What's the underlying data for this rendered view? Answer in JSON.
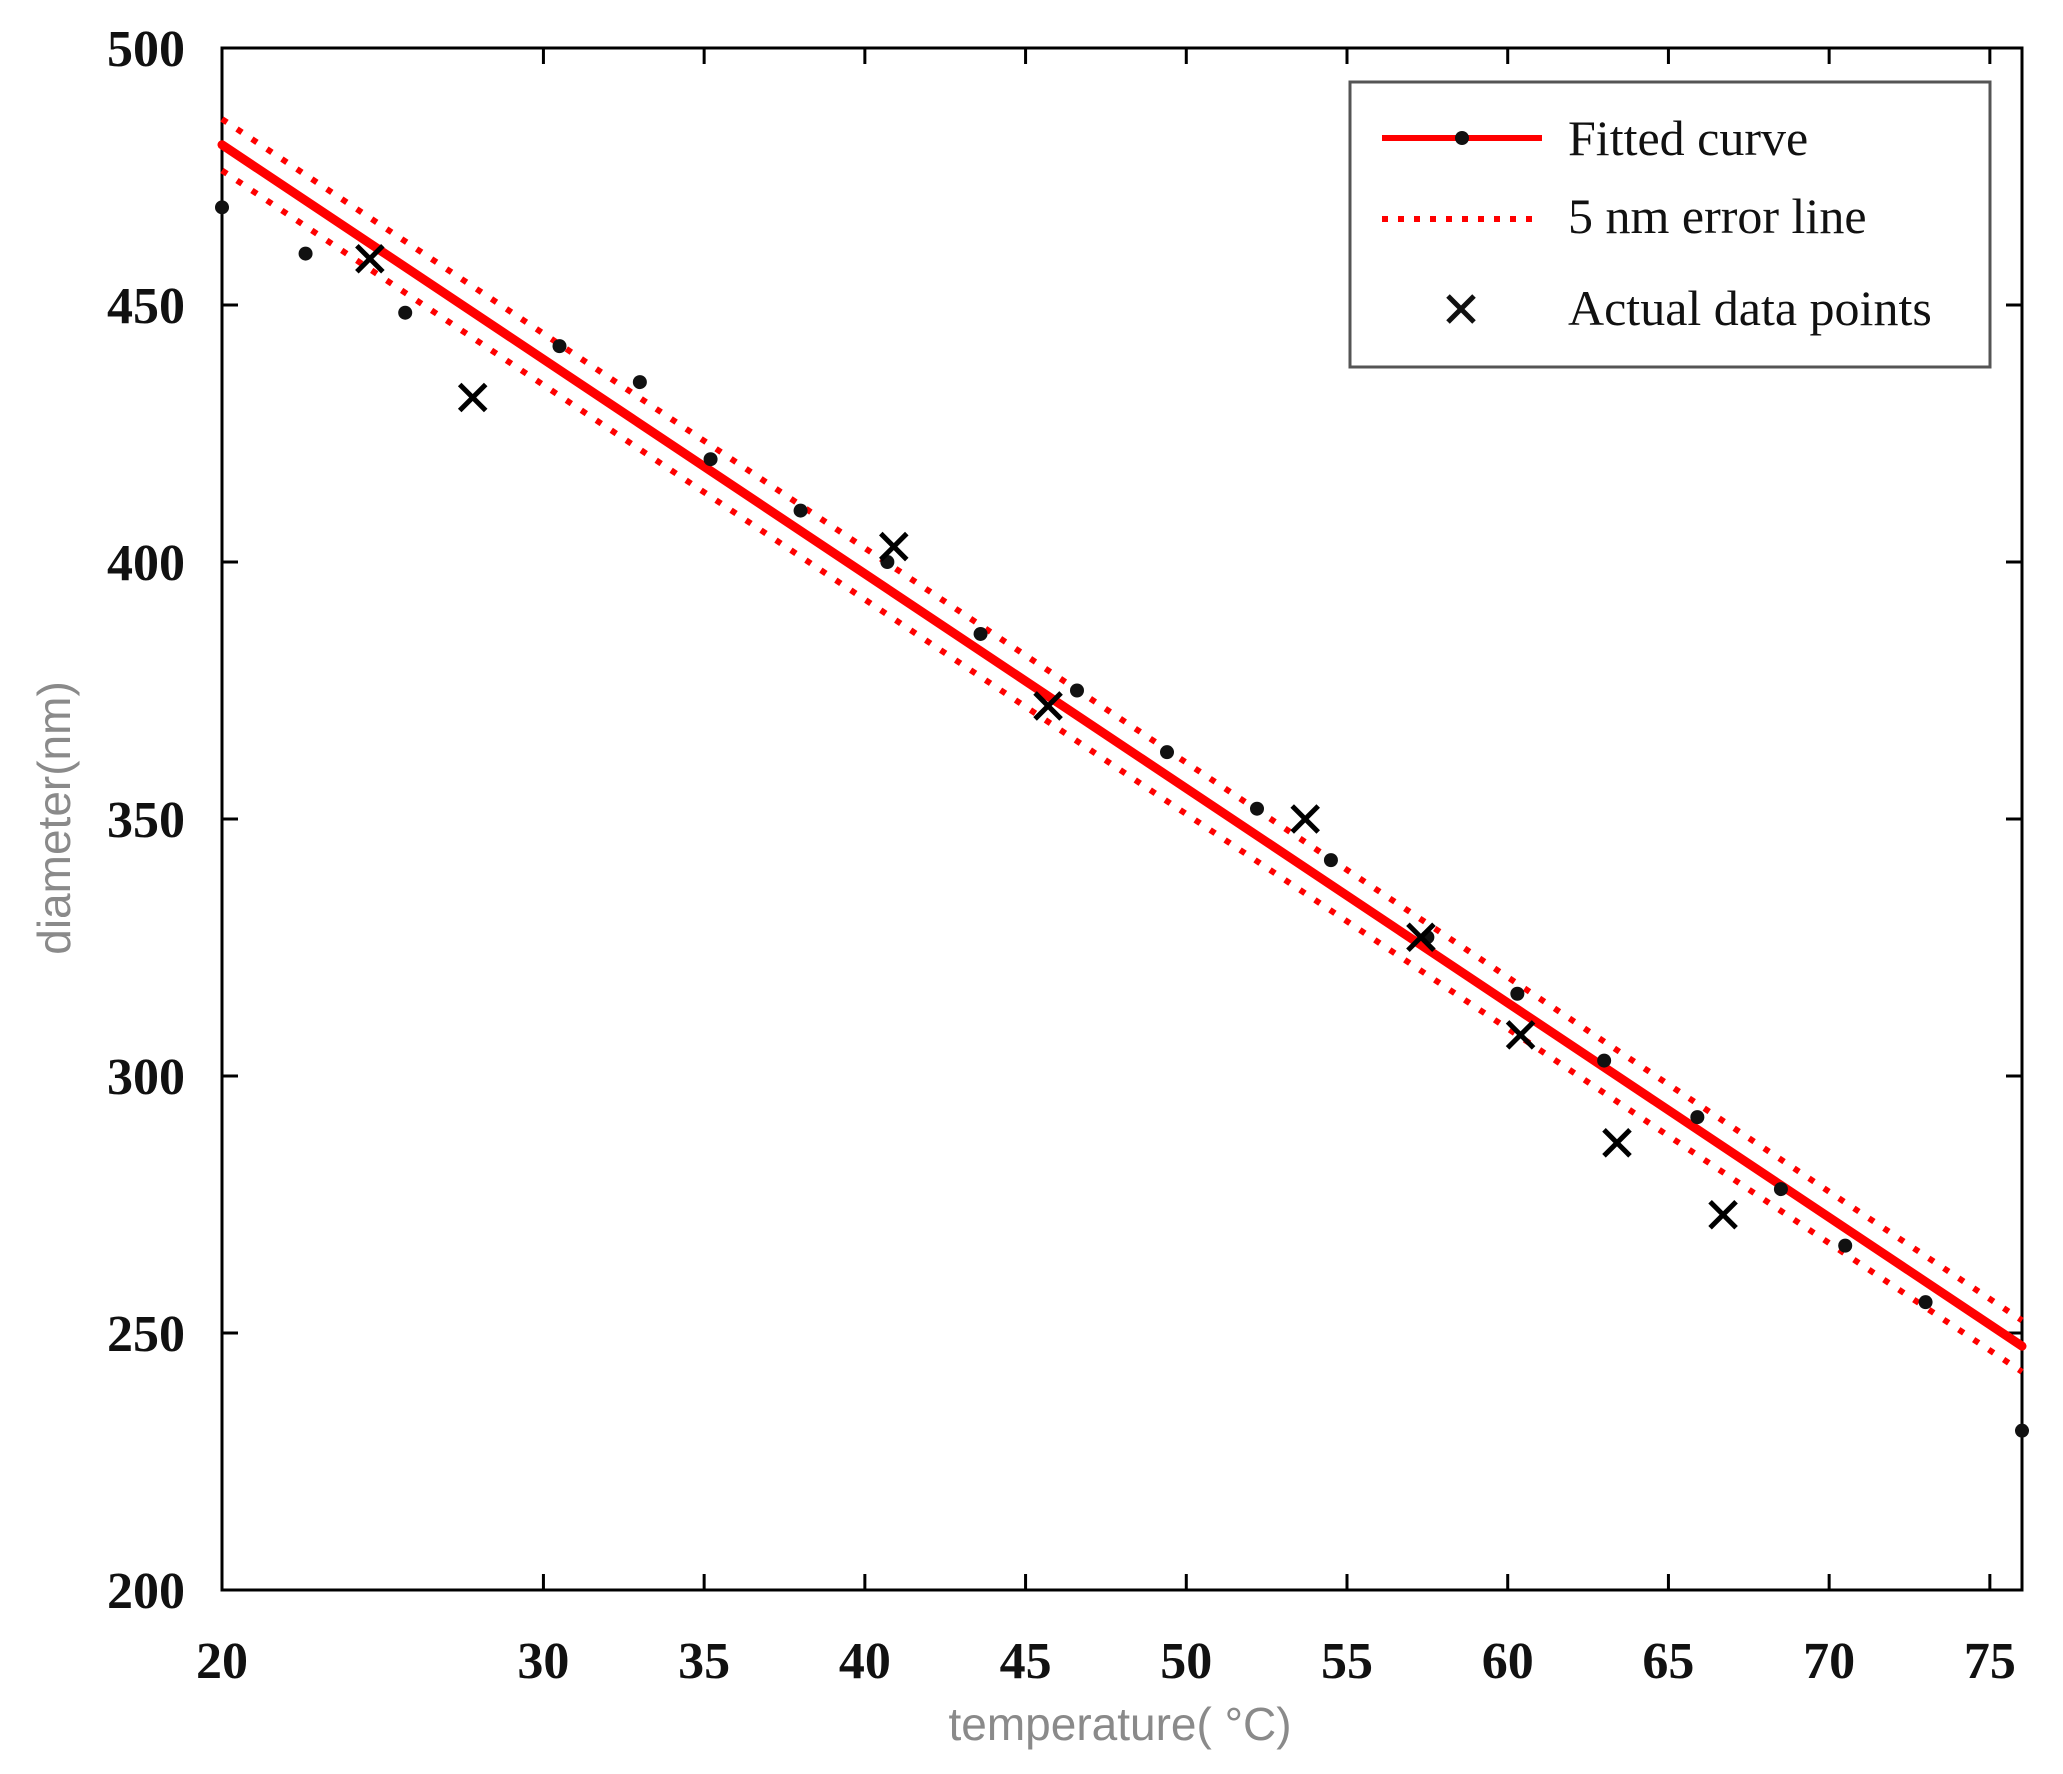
{
  "chart_data": {
    "type": "line",
    "title": "",
    "xlabel": "temperature( °C)",
    "ylabel": "diameter(nm)",
    "xlim": [
      20,
      76
    ],
    "ylim": [
      200,
      500
    ],
    "x_ticks": [
      20,
      30,
      35,
      40,
      45,
      50,
      55,
      60,
      65,
      70,
      75
    ],
    "y_ticks": [
      200,
      250,
      300,
      350,
      400,
      450,
      500
    ],
    "grid": false,
    "legend": {
      "placement": "top-right",
      "entries": [
        "Fitted curve",
        "5 nm error line",
        "Actual data points"
      ]
    },
    "series": [
      {
        "name": "Fitted curve",
        "style": "solid line with dot markers",
        "color": "#ff0000",
        "x": [
          20,
          22.6,
          25.7,
          30.5,
          33,
          35.2,
          38.0,
          40.7,
          43.6,
          46.6,
          49.4,
          52.2,
          54.5,
          57.5,
          60.3,
          63.0,
          65.9,
          68.5,
          70.5,
          73.0,
          76
        ],
        "y": [
          469,
          460,
          448.5,
          442,
          435,
          420,
          410,
          400,
          386,
          375,
          363,
          352,
          342,
          327,
          316,
          303,
          292,
          278,
          267,
          256,
          231
        ]
      },
      {
        "name": "5 nm error line",
        "style": "dotted",
        "color": "#ff0000",
        "offset": 5
      },
      {
        "name": "Actual data points",
        "style": "x markers",
        "color": "#000000",
        "x": [
          24.6,
          27.8,
          40.9,
          45.7,
          53.7,
          57.3,
          60.4,
          63.4,
          66.7
        ],
        "y": [
          459,
          432,
          403,
          372,
          350,
          327,
          308,
          287,
          273
        ]
      }
    ],
    "colors": {
      "fit": "#ff0000",
      "points": "#000000",
      "axis": "#000000"
    }
  }
}
